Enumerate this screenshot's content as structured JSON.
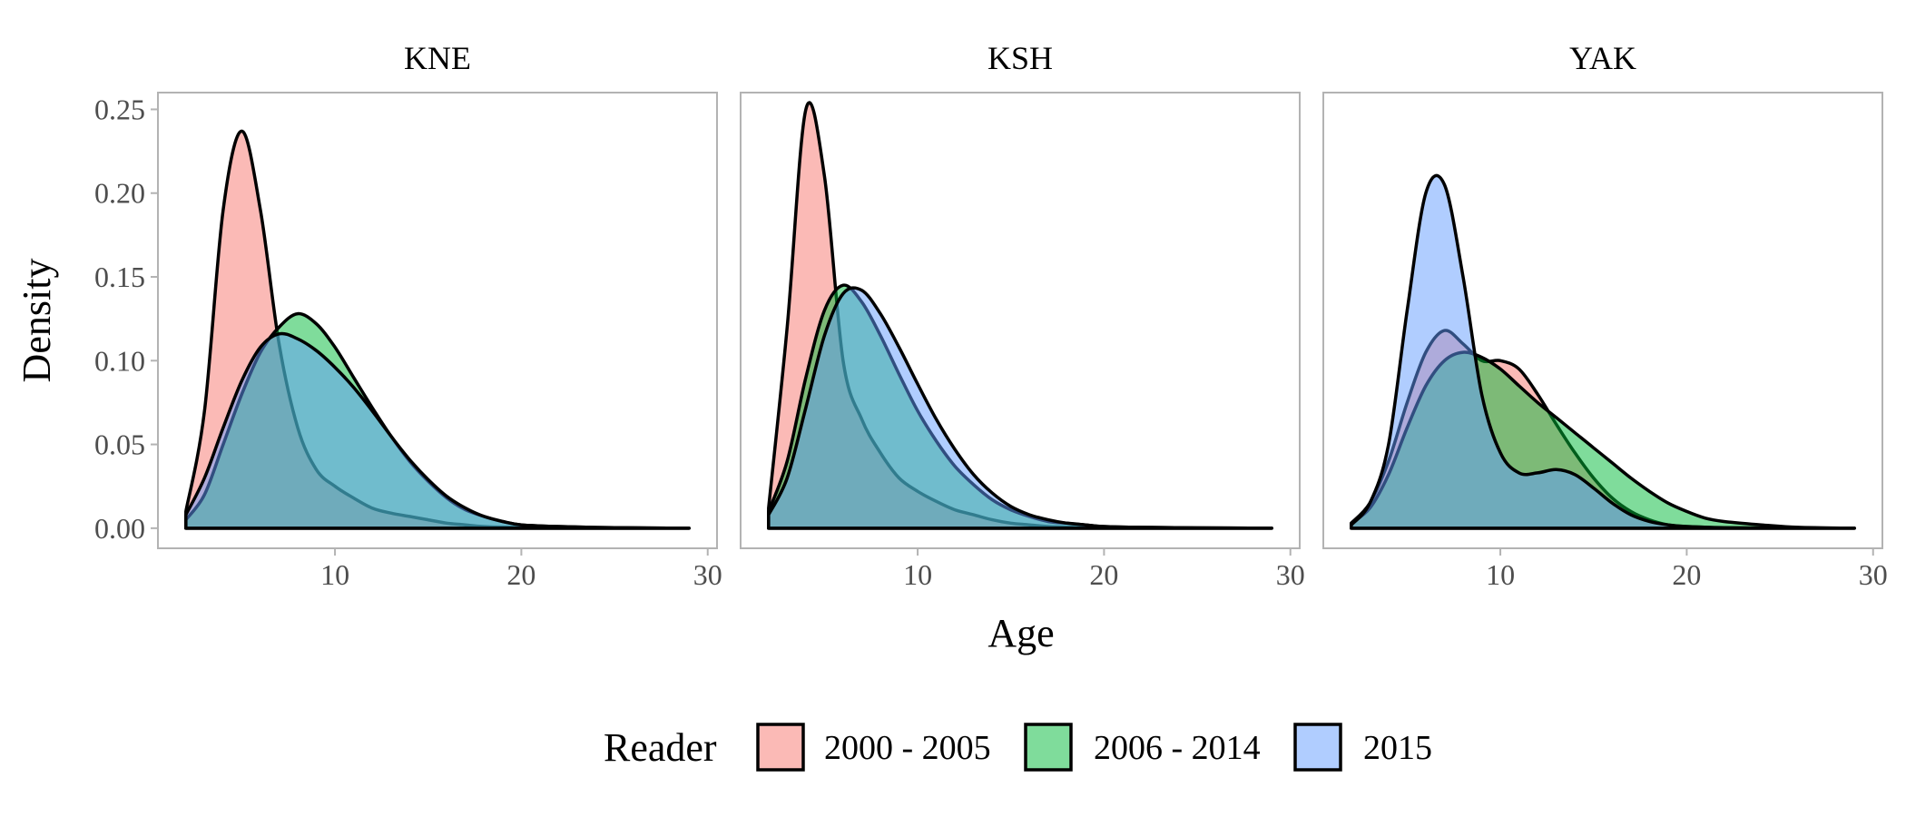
{
  "chart_data": {
    "type": "area",
    "subtype": "faceted density plot",
    "xlabel": "Age",
    "ylabel": "Density",
    "xlim": [
      0.5,
      30.5
    ],
    "ylim": [
      -0.012,
      0.26
    ],
    "x_ticks": [
      10,
      20,
      30
    ],
    "y_ticks": [
      0.0,
      0.05,
      0.1,
      0.15,
      0.2,
      0.25
    ],
    "y_tick_labels": [
      "0.00",
      "0.05",
      "0.10",
      "0.15",
      "0.20",
      "0.25"
    ],
    "grid": false,
    "legend": {
      "title": "Reader",
      "position": "bottom",
      "entries": [
        "2000 - 2005",
        "2006 - 2014",
        "2015"
      ]
    },
    "series_colors": {
      "2000 - 2005": "#F8766D",
      "2006 - 2014": "#00BA38",
      "2015": "#619CFF"
    },
    "facets": [
      {
        "label": "KNE",
        "series": [
          {
            "name": "2000 - 2005",
            "x": [
              2,
              3,
              4,
              5,
              6,
              7,
              8,
              9,
              10,
              11,
              12,
              13,
              14,
              15,
              16,
              17,
              18,
              20,
              29
            ],
            "y": [
              0.01,
              0.07,
              0.19,
              0.237,
              0.19,
              0.11,
              0.06,
              0.035,
              0.025,
              0.018,
              0.012,
              0.009,
              0.007,
              0.005,
              0.003,
              0.002,
              0.001,
              0.0005,
              0
            ]
          },
          {
            "name": "2006 - 2014",
            "x": [
              2,
              3,
              4,
              5,
              6,
              7,
              8,
              9,
              10,
              11,
              12,
              13,
              14,
              15,
              16,
              17,
              18,
              19,
              20,
              22,
              25,
              29
            ],
            "y": [
              0.005,
              0.02,
              0.05,
              0.08,
              0.105,
              0.12,
              0.128,
              0.122,
              0.108,
              0.09,
              0.072,
              0.055,
              0.04,
              0.028,
              0.018,
              0.011,
              0.007,
              0.004,
              0.002,
              0.001,
              0.0003,
              0
            ]
          },
          {
            "name": "2015",
            "x": [
              2,
              3,
              4,
              5,
              6,
              7,
              8,
              9,
              10,
              11,
              12,
              13,
              14,
              15,
              16,
              17,
              18,
              19,
              20,
              22,
              25,
              29
            ],
            "y": [
              0.008,
              0.03,
              0.06,
              0.088,
              0.108,
              0.116,
              0.113,
              0.106,
              0.096,
              0.084,
              0.07,
              0.055,
              0.041,
              0.029,
              0.019,
              0.012,
              0.007,
              0.004,
              0.002,
              0.001,
              0.0003,
              0
            ]
          }
        ]
      },
      {
        "label": "KSH",
        "series": [
          {
            "name": "2000 - 2005",
            "x": [
              2,
              3,
              4,
              5,
              6,
              7,
              8,
              9,
              10,
              11,
              12,
              13,
              14,
              15,
              16,
              17,
              18,
              20,
              29
            ],
            "y": [
              0.012,
              0.12,
              0.25,
              0.21,
              0.1,
              0.065,
              0.045,
              0.03,
              0.022,
              0.016,
              0.011,
              0.008,
              0.005,
              0.003,
              0.002,
              0.001,
              0.0007,
              0.0003,
              0
            ]
          },
          {
            "name": "2006 - 2014",
            "x": [
              2,
              3,
              4,
              5,
              6,
              7,
              8,
              9,
              10,
              11,
              12,
              13,
              14,
              15,
              16,
              17,
              18,
              19,
              20,
              22,
              25,
              29
            ],
            "y": [
              0.01,
              0.04,
              0.09,
              0.13,
              0.145,
              0.135,
              0.115,
              0.092,
              0.07,
              0.052,
              0.037,
              0.026,
              0.017,
              0.011,
              0.007,
              0.004,
              0.003,
              0.002,
              0.001,
              0.0005,
              0.0002,
              0
            ]
          },
          {
            "name": "2015",
            "x": [
              2,
              3,
              4,
              5,
              6,
              7,
              8,
              9,
              10,
              11,
              12,
              13,
              14,
              15,
              16,
              17,
              18,
              19,
              20,
              22,
              25,
              29
            ],
            "y": [
              0.008,
              0.03,
              0.072,
              0.115,
              0.14,
              0.142,
              0.128,
              0.108,
              0.086,
              0.065,
              0.047,
              0.032,
              0.021,
              0.013,
              0.008,
              0.005,
              0.003,
              0.002,
              0.001,
              0.0005,
              0.0002,
              0
            ]
          }
        ]
      },
      {
        "label": "YAK",
        "series": [
          {
            "name": "2000 - 2005",
            "x": [
              2,
              3,
              4,
              5,
              6,
              7,
              8,
              9,
              10,
              11,
              12,
              13,
              14,
              15,
              16,
              17,
              18,
              19,
              20,
              22,
              25,
              29
            ],
            "y": [
              0.003,
              0.015,
              0.04,
              0.075,
              0.105,
              0.118,
              0.11,
              0.1,
              0.1,
              0.095,
              0.08,
              0.062,
              0.045,
              0.03,
              0.018,
              0.01,
              0.005,
              0.002,
              0.001,
              0.0003,
              0.0001,
              0
            ]
          },
          {
            "name": "2006 - 2014",
            "x": [
              2,
              3,
              4,
              5,
              6,
              7,
              8,
              9,
              10,
              11,
              12,
              13,
              14,
              15,
              16,
              17,
              18,
              19,
              20,
              21,
              22,
              24,
              26,
              29
            ],
            "y": [
              0.003,
              0.012,
              0.032,
              0.06,
              0.085,
              0.1,
              0.105,
              0.102,
              0.095,
              0.085,
              0.075,
              0.066,
              0.057,
              0.048,
              0.039,
              0.03,
              0.022,
              0.015,
              0.01,
              0.006,
              0.004,
              0.002,
              0.0005,
              0
            ]
          },
          {
            "name": "2015",
            "x": [
              2,
              3,
              4,
              5,
              6,
              7,
              8,
              9,
              10,
              11,
              12,
              13,
              14,
              15,
              16,
              17,
              18,
              19,
              20,
              22,
              25,
              29
            ],
            "y": [
              0.002,
              0.015,
              0.05,
              0.13,
              0.2,
              0.205,
              0.15,
              0.08,
              0.045,
              0.033,
              0.033,
              0.035,
              0.032,
              0.024,
              0.015,
              0.008,
              0.004,
              0.002,
              0.001,
              0.0003,
              0.0001,
              0
            ]
          }
        ]
      }
    ]
  }
}
